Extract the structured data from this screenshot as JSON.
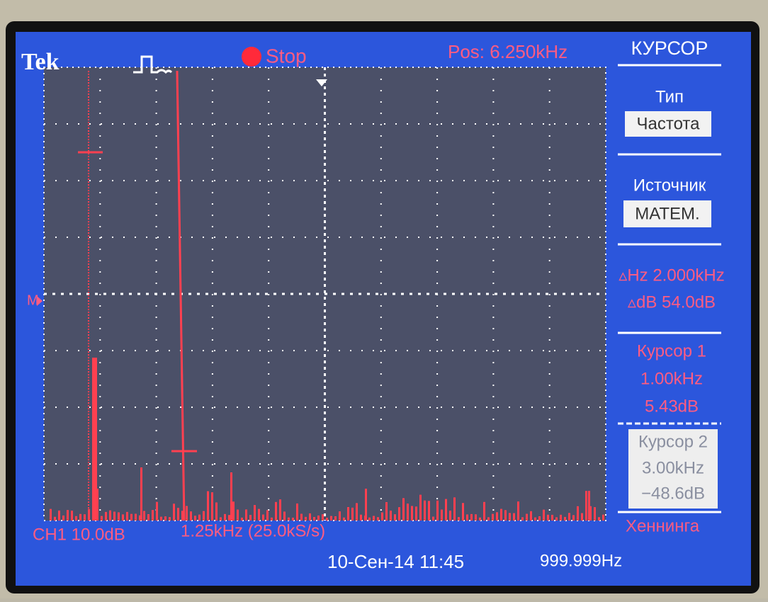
{
  "header": {
    "brand": "Tek",
    "state": "Stop",
    "position": "Pos: 6.250kHz"
  },
  "menu": {
    "title": "КУРСОР",
    "items": [
      {
        "label": "Тип",
        "value": "Частота"
      },
      {
        "label": "Источник",
        "value": "МАТЕМ."
      }
    ],
    "delta": [
      "▵Hz 2.000kHz",
      "▵dB 54.0dB"
    ],
    "cursor1": [
      "Курсор 1",
      "1.00kHz",
      "5.43dB"
    ],
    "cursor2": [
      "Курсор 2",
      "3.00kHz",
      "−48.6dB"
    ],
    "window": "Хеннинга"
  },
  "marker": "M",
  "footer": {
    "channel": "CH1 10.0dB",
    "span": "1.25kHz (25.0kS/s)",
    "datetime": "10-Сен-14 11:45",
    "frequency": "999.999Hz"
  }
}
